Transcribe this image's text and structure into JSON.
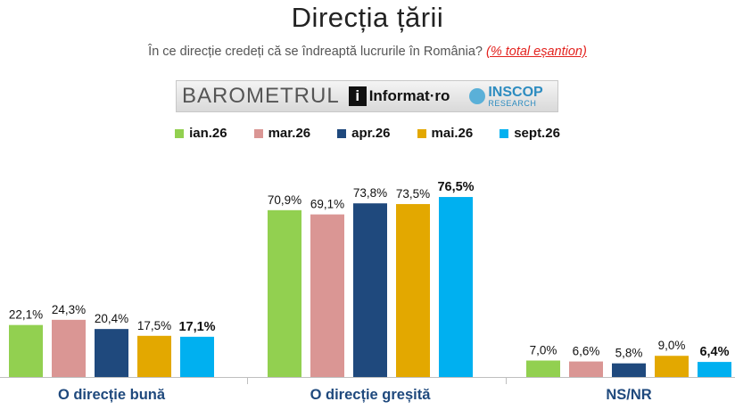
{
  "header": {
    "title": "Direcția țării",
    "subtitle_main": "În ce direcție credeți că se îndreaptă lucrurile în România?",
    "subtitle_highlight": "(% total eșantion)"
  },
  "banner": {
    "barometer_label": "BAROMETRUL",
    "logo_letter": "i",
    "informat_label": "Informat·ro",
    "inscop_label": "INSCOP",
    "inscop_sub": "RESEARCH"
  },
  "chart_data": {
    "type": "bar",
    "title": "",
    "xlabel": "",
    "ylabel": "",
    "ylim": [
      0,
      100
    ],
    "legend_position": "top-center",
    "grid": false,
    "categories": [
      "O direcție bună",
      "O direcție greșită",
      "NS/NR"
    ],
    "series": [
      {
        "name": "ian.26",
        "color": "#92d050",
        "values": [
          22.1,
          70.9,
          7.0
        ],
        "labels": [
          "22,1%",
          "70,9%",
          "7,0%"
        ]
      },
      {
        "name": "mar.26",
        "color": "#da9694",
        "values": [
          24.3,
          69.1,
          6.6
        ],
        "labels": [
          "24,3%",
          "69,1%",
          "6,6%"
        ]
      },
      {
        "name": "apr.26",
        "color": "#1f497d",
        "values": [
          20.4,
          73.8,
          5.8
        ],
        "labels": [
          "20,4%",
          "73,8%",
          "5,8%"
        ]
      },
      {
        "name": "mai.26",
        "color": "#e3a800",
        "values": [
          17.5,
          73.5,
          9.0
        ],
        "labels": [
          "17,5%",
          "73,5%",
          "9,0%"
        ]
      },
      {
        "name": "sept.26",
        "color": "#00b0f0",
        "values": [
          17.1,
          76.5,
          6.4
        ],
        "labels": [
          "17,1%",
          "76,5%",
          "6,4%"
        ],
        "bold_labels": true
      }
    ]
  }
}
